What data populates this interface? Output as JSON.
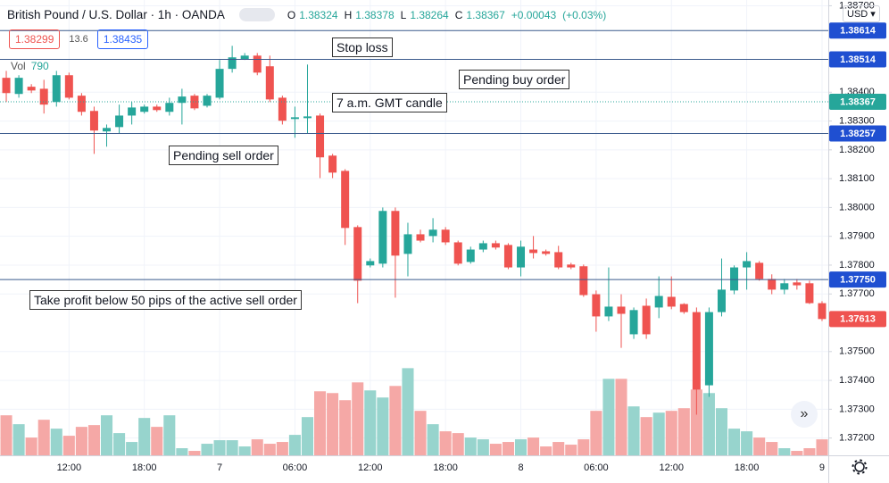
{
  "chart_data": {
    "type": "candlestick",
    "title": "British Pound / U.S. Dollar · 1h · OANDA",
    "legend_ohlc": [
      {
        "label": "O",
        "value": 1.38324
      },
      {
        "label": "H",
        "value": 1.38378
      },
      {
        "label": "L",
        "value": 1.38264
      },
      {
        "label": "C",
        "value": 1.38367
      }
    ],
    "legend_change": "+0.00043",
    "legend_change_pct": "(+0.03%)",
    "sell_price": 1.38299,
    "spread": 13.6,
    "buy_price": 1.38435,
    "currency": "USD",
    "volume_name": "Vol",
    "categories": [
      null,
      null,
      null,
      null,
      null,
      "12:00",
      null,
      null,
      null,
      null,
      null,
      "18:00",
      null,
      null,
      null,
      null,
      null,
      "7",
      null,
      null,
      null,
      null,
      null,
      "06:00",
      null,
      null,
      null,
      null,
      null,
      "12:00",
      null,
      null,
      null,
      null,
      null,
      "18:00",
      null,
      null,
      null,
      null,
      null,
      "8",
      null,
      null,
      null,
      null,
      null,
      "06:00",
      null,
      null,
      null,
      null,
      null,
      "12:00",
      null,
      null,
      null,
      null,
      null,
      "18:00",
      null,
      null,
      null,
      null,
      null,
      "9"
    ],
    "ohlc": [
      [
        1.3845,
        1.38474,
        1.38366,
        1.38397
      ],
      [
        1.38394,
        1.38459,
        1.38381,
        1.3845
      ],
      [
        1.38419,
        1.38428,
        1.38397,
        1.38406
      ],
      [
        1.38412,
        1.38443,
        1.38326,
        1.38357
      ],
      [
        1.38366,
        1.38474,
        1.3835,
        1.38459
      ],
      [
        1.38459,
        1.38468,
        1.38375,
        1.38381
      ],
      [
        1.38388,
        1.38397,
        1.38319,
        1.38332
      ],
      [
        1.38335,
        1.3835,
        1.38186,
        1.38267
      ],
      [
        1.38264,
        1.38288,
        1.38211,
        1.38276
      ],
      [
        1.38279,
        1.38357,
        1.38257,
        1.38319
      ],
      [
        1.38319,
        1.38366,
        1.38288,
        1.38347
      ],
      [
        1.38332,
        1.38357,
        1.38326,
        1.3835
      ],
      [
        1.3835,
        1.38357,
        1.38332,
        1.38338
      ],
      [
        1.38332,
        1.38381,
        1.38319,
        1.38363
      ],
      [
        1.38363,
        1.38412,
        1.38288,
        1.38385
      ],
      [
        1.38388,
        1.38394,
        1.38338,
        1.38344
      ],
      [
        1.38353,
        1.38394,
        1.38347,
        1.38388
      ],
      [
        1.38381,
        1.38512,
        1.38375,
        1.38481
      ],
      [
        1.38481,
        1.38561,
        1.38468,
        1.38521
      ],
      [
        1.38515,
        1.38536,
        1.38512,
        1.38527
      ],
      [
        1.38527,
        1.38536,
        1.38459,
        1.38468
      ],
      [
        1.3849,
        1.38527,
        1.38366,
        1.38375
      ],
      [
        1.38381,
        1.38388,
        1.38288,
        1.38301
      ],
      [
        1.38307,
        1.3835,
        1.38242,
        1.38313
      ],
      [
        1.3831,
        1.38496,
        1.38257,
        1.38316
      ],
      [
        1.38319,
        1.38326,
        1.38102,
        1.38174
      ],
      [
        1.3818,
        1.38186,
        1.38102,
        1.38121
      ],
      [
        1.38127,
        1.38133,
        1.3787,
        1.37929
      ],
      [
        1.37932,
        1.37938,
        1.37668,
        1.37746
      ],
      [
        1.37799,
        1.37823,
        1.37792,
        1.37814
      ],
      [
        1.37805,
        1.38,
        1.37792,
        1.37988
      ],
      [
        1.37988,
        1.38,
        1.37687,
        1.37833
      ],
      [
        1.37839,
        1.37947,
        1.37761,
        1.37907
      ],
      [
        1.37907,
        1.37923,
        1.37879,
        1.37885
      ],
      [
        1.37901,
        1.37963,
        1.37879,
        1.37923
      ],
      [
        1.37923,
        1.37932,
        1.3787,
        1.37879
      ],
      [
        1.37879,
        1.37885,
        1.37799,
        1.37805
      ],
      [
        1.37811,
        1.37864,
        1.37805,
        1.37854
      ],
      [
        1.37854,
        1.37885,
        1.37845,
        1.37876
      ],
      [
        1.37876,
        1.37885,
        1.37854,
        1.37861
      ],
      [
        1.3787,
        1.37876,
        1.37786,
        1.37792
      ],
      [
        1.37792,
        1.37885,
        1.37761,
        1.37864
      ],
      [
        1.37854,
        1.37901,
        1.37823,
        1.37842
      ],
      [
        1.37848,
        1.37854,
        1.37833,
        1.37839
      ],
      [
        1.37845,
        1.37867,
        1.37786,
        1.37792
      ],
      [
        1.37802,
        1.37808,
        1.37786,
        1.37792
      ],
      [
        1.37796,
        1.37802,
        1.3769,
        1.37696
      ],
      [
        1.37699,
        1.37712,
        1.37569,
        1.37622
      ],
      [
        1.37622,
        1.37792,
        1.37606,
        1.37656
      ],
      [
        1.37656,
        1.37699,
        1.37513,
        1.37631
      ],
      [
        1.3756,
        1.37653,
        1.37544,
        1.37644
      ],
      [
        1.37659,
        1.37684,
        1.37544,
        1.3756
      ],
      [
        1.37653,
        1.37761,
        1.37616,
        1.37693
      ],
      [
        1.3769,
        1.37761,
        1.37647,
        1.37656
      ],
      [
        1.37665,
        1.37668,
        1.37631,
        1.37637
      ],
      [
        1.37637,
        1.37653,
        1.37281,
        1.37368
      ],
      [
        1.37383,
        1.37653,
        1.37343,
        1.37637
      ],
      [
        1.37637,
        1.37823,
        1.37622,
        1.37715
      ],
      [
        1.37712,
        1.37799,
        1.37699,
        1.37792
      ],
      [
        1.37792,
        1.37845,
        1.37715,
        1.37814
      ],
      [
        1.37808,
        1.37814,
        1.37746,
        1.37752
      ],
      [
        1.37752,
        1.37768,
        1.37699,
        1.37715
      ],
      [
        1.37715,
        1.37752,
        1.37699,
        1.37737
      ],
      [
        1.3774,
        1.37752,
        1.37715,
        1.3773
      ],
      [
        1.37737,
        1.37746,
        1.37665,
        1.37668
      ],
      [
        1.37668,
        1.37675,
        1.37606,
        1.37613
      ]
    ],
    "volume": [
      1980,
      1540,
      880,
      1760,
      1320,
      968,
      1408,
      1496,
      1980,
      1100,
      660,
      1848,
      1408,
      1980,
      352,
      220,
      572,
      748,
      748,
      440,
      792,
      572,
      660,
      1012,
      1892,
      3168,
      3080,
      2728,
      3608,
      3212,
      2860,
      3432,
      4312,
      2200,
      1540,
      1188,
      1100,
      880,
      792,
      572,
      660,
      792,
      880,
      440,
      660,
      528,
      792,
      2200,
      3784,
      3784,
      2420,
      1892,
      2112,
      2200,
      2332,
      3256,
      3080,
      2332,
      1320,
      1188,
      880,
      660,
      352,
      220,
      352,
      790
    ],
    "up_color": "#26a69a",
    "down_color": "#ef5350",
    "volume_up_color": "#97d4cd",
    "volume_down_color": "#f5a8a6",
    "volume_ylim": [
      0,
      5300
    ],
    "ylim": [
      1.3714,
      1.3872
    ],
    "yticks": [
      {
        "value": 1.387,
        "label": "1.38700"
      },
      {
        "value": 1.384,
        "label": "1.38400"
      },
      {
        "value": 1.383,
        "label": "1.38300"
      },
      {
        "value": 1.382,
        "label": "1.38200"
      },
      {
        "value": 1.381,
        "label": "1.38100"
      },
      {
        "value": 1.38,
        "label": "1.38000"
      },
      {
        "value": 1.379,
        "label": "1.37900"
      },
      {
        "value": 1.378,
        "label": "1.37800"
      },
      {
        "value": 1.377,
        "label": "1.37700"
      },
      {
        "value": 1.375,
        "label": "1.37500"
      },
      {
        "value": 1.374,
        "label": "1.37400"
      },
      {
        "value": 1.373,
        "label": "1.37300"
      },
      {
        "value": 1.372,
        "label": "1.37200"
      }
    ],
    "grid": true,
    "levels": [
      {
        "price": 1.38614,
        "color": "#3a5a8c",
        "label_color": "#1f4fd1",
        "style": "solid"
      },
      {
        "price": 1.38514,
        "color": "#3a5a8c",
        "label_color": "#1f4fd1",
        "style": "solid"
      },
      {
        "price": 1.38367,
        "color": "#26a69a",
        "label_color": "#26a69a",
        "style": "dotted"
      },
      {
        "price": 1.38257,
        "color": "#3a5a8c",
        "label_color": "#1f4fd1",
        "style": "solid"
      },
      {
        "price": {
          "value": 1.3775,
          "label": "1.37750"
        },
        "color": "#3a5a8c",
        "label_color": "#1f4fd1",
        "style": "solid"
      },
      {
        "price": 1.37613,
        "color": "#ef5350",
        "label_color": "#ef5350",
        "style": "none"
      }
    ],
    "annotations": [
      "Stop loss",
      "Pending buy order",
      "7 a.m. GMT candle",
      "Pending sell order",
      "Take profit below 50 pips of the active sell order"
    ]
  }
}
